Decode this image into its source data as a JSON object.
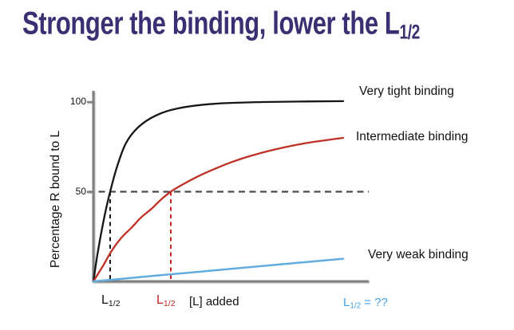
{
  "slide": {
    "title_main": "Stronger the binding, lower the L",
    "title_sub": "1/2",
    "title_color": "#3a2f72",
    "background": "#ffffff"
  },
  "chart_data": {
    "type": "line",
    "title": "",
    "xlabel": "[L] added",
    "ylabel": "Percentage R bound to L",
    "xlim": [
      0,
      100
    ],
    "ylim": [
      0,
      100
    ],
    "yticks": [
      100,
      50
    ],
    "grid": false,
    "legend_position": "right-of-curve-ends",
    "axis_color": "#7f7f7f",
    "half_max_line_color": "#4a4a4a",
    "annotations": {
      "half_max_percent": 50,
      "lhalf_base": "L",
      "lhalf_sub": "1/2",
      "blue_lhalf_suffix": " = ??",
      "blue_text_color": "#41a0e8"
    },
    "series": [
      {
        "name": "Very tight binding",
        "color": "#161616",
        "dash_color": "#161616",
        "l_half_x": 6.7,
        "points": [
          [
            0,
            0
          ],
          [
            1.5,
            14
          ],
          [
            3,
            26
          ],
          [
            4.7,
            38
          ],
          [
            6.7,
            50
          ],
          [
            9.5,
            64
          ],
          [
            13,
            77
          ],
          [
            18,
            86
          ],
          [
            25,
            92.5
          ],
          [
            34,
            96.5
          ],
          [
            48,
            99
          ],
          [
            68,
            100
          ],
          [
            100,
            100.5
          ]
        ]
      },
      {
        "name": "Intermediate binding",
        "color": "#bf3126",
        "dash_color": "#c0281e",
        "l_half_x": 31,
        "points": [
          [
            0,
            0
          ],
          [
            4,
            9
          ],
          [
            7.3,
            17
          ],
          [
            11,
            24
          ],
          [
            15.3,
            30
          ],
          [
            19,
            35.5
          ],
          [
            23.3,
            40.5
          ],
          [
            27,
            45.5
          ],
          [
            31,
            50
          ],
          [
            37,
            55
          ],
          [
            42.5,
            59
          ],
          [
            49,
            63
          ],
          [
            55.3,
            66.5
          ],
          [
            63,
            70
          ],
          [
            71,
            73
          ],
          [
            79,
            75.5
          ],
          [
            87,
            77.5
          ],
          [
            100,
            80
          ]
        ]
      },
      {
        "name": "Very weak binding",
        "color": "#63ace0",
        "points": [
          [
            0,
            0
          ],
          [
            25,
            3.2
          ],
          [
            50,
            6.3
          ],
          [
            75,
            9.5
          ],
          [
            100,
            12.6
          ]
        ]
      }
    ]
  }
}
